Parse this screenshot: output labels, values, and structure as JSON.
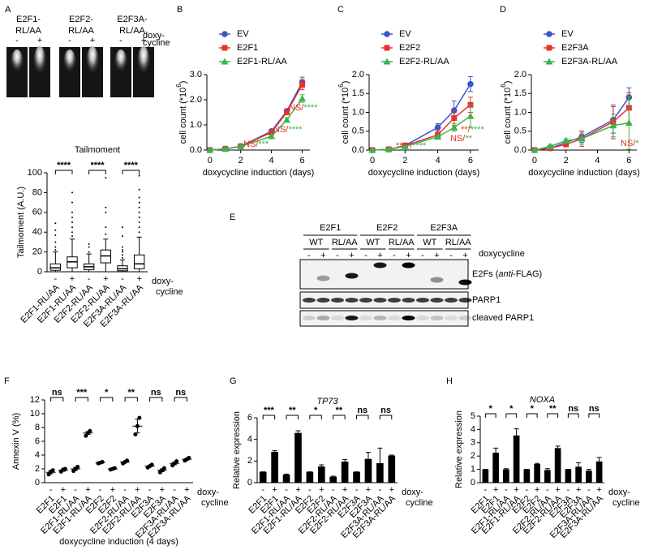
{
  "panel_labels": [
    "A",
    "B",
    "C",
    "D",
    "E",
    "F",
    "G",
    "H"
  ],
  "comet": {
    "groups": [
      [
        "E2F1-",
        "RL/AA"
      ],
      [
        "E2F2-",
        "RL/AA"
      ],
      [
        "E2F3A-",
        "RL/AA"
      ]
    ],
    "signs": [
      "-",
      "+",
      "-",
      "+",
      "-",
      "+"
    ],
    "row_label": [
      "doxy-",
      "cycline"
    ]
  },
  "blot": {
    "groups": [
      "E2F1",
      "E2F2",
      "E2F3A"
    ],
    "subgroups": [
      "WT",
      "RL/AA",
      "WT",
      "RL/AA",
      "WT",
      "RL/AA"
    ],
    "signs": [
      "-",
      "+",
      "-",
      "+",
      "-",
      "+",
      "-",
      "+",
      "-",
      "+",
      "-",
      "+"
    ],
    "row_label": "doxycycline",
    "rows": [
      [
        "E2Fs (",
        "anti",
        "-FLAG)"
      ],
      [
        "PARP1"
      ],
      [
        "cleaved PARP1"
      ]
    ]
  },
  "chart_data": [
    {
      "type": "box",
      "title": "Tailmoment",
      "y_label": "Tailmoment (A.U.)",
      "categories": [
        "E2F1-RL/AA",
        "E2F1-RL/AA",
        "E2F2-RL/AA",
        "E2F2-RL/AA",
        "E2F3A-RL/AA",
        "E2F3A-RL/AA"
      ],
      "signs": [
        "-",
        "+",
        "-",
        "+",
        "-",
        "+"
      ],
      "row_label": [
        "doxy-",
        "cycline"
      ],
      "whislo": [
        0,
        0,
        0,
        0,
        0,
        0
      ],
      "q1": [
        1.5,
        4,
        2,
        9,
        1,
        3
      ],
      "median": [
        4,
        10,
        5,
        16,
        3,
        8
      ],
      "q3": [
        8,
        15,
        8,
        22,
        6,
        17
      ],
      "whishi": [
        20,
        33,
        18,
        33,
        12,
        35
      ],
      "outliers": [
        [
          22,
          25,
          30,
          37,
          42,
          49
        ],
        [
          36,
          40,
          45,
          50,
          55,
          60,
          70,
          80
        ],
        [
          20,
          25,
          28
        ],
        [
          38,
          45,
          60,
          65,
          95
        ],
        [
          14,
          17,
          20,
          22,
          25,
          36,
          45
        ],
        [
          40,
          45,
          50,
          55,
          60,
          65,
          70,
          75,
          83,
          97
        ]
      ],
      "significance": [
        "****",
        "****",
        "****"
      ],
      "ylim": [
        0,
        100
      ],
      "yticks": [
        0,
        20,
        40,
        60,
        80,
        100
      ],
      "color": "#000000"
    },
    {
      "type": "line",
      "y_label": [
        "cell count (*10",
        "6",
        ")"
      ],
      "x_label": "doxycycline induction (days)",
      "x": [
        0,
        1,
        2,
        4,
        5,
        6
      ],
      "xlim": [
        -0.2,
        6.5
      ],
      "xticks": [
        0,
        2,
        4,
        6
      ],
      "ylim": [
        0,
        3
      ],
      "yticks": [
        {
          "value": 0,
          "label": "0.0"
        },
        {
          "value": 1,
          "label": "1.0"
        },
        {
          "value": 2,
          "label": "2.0"
        },
        {
          "value": 3,
          "label": "3.0"
        }
      ],
      "series": [
        {
          "name": "EV",
          "color": "#3b55c4",
          "marker": "circle",
          "values": [
            0,
            0.05,
            0.15,
            0.75,
            1.55,
            2.7
          ],
          "errors": [
            0,
            0.02,
            0.03,
            0.05,
            0.08,
            0.2
          ]
        },
        {
          "name": "E2F1",
          "color": "#e8322d",
          "marker": "square",
          "values": [
            0,
            0.05,
            0.15,
            0.7,
            1.5,
            2.6
          ],
          "errors": [
            0,
            0.02,
            0.03,
            0.05,
            0.08,
            0.2
          ]
        },
        {
          "name": "E2F1-RL/AA",
          "color": "#3cb44b",
          "marker": "triangle",
          "values": [
            0,
            0.05,
            0.15,
            0.55,
            1.2,
            2.05
          ],
          "errors": [
            0,
            0.02,
            0.03,
            0.05,
            0.08,
            0.15
          ]
        }
      ],
      "annotations": [
        {
          "parts": [
            "NS/",
            "****"
          ],
          "colors": [
            "#e8322d",
            "#3cb44b"
          ]
        },
        {
          "parts": [
            "NS/",
            "****"
          ],
          "colors": [
            "#e8322d",
            "#3cb44b"
          ]
        },
        {
          "parts": [
            "NS/",
            "***"
          ],
          "colors": [
            "#e8322d",
            "#3cb44b"
          ]
        }
      ]
    },
    {
      "type": "line",
      "y_label": [
        "cell count (*10",
        "6",
        ")"
      ],
      "x_label": "doxycycline induction (days)",
      "x": [
        0,
        1,
        2,
        4,
        5,
        6
      ],
      "xlim": [
        -0.2,
        6.5
      ],
      "xticks": [
        0,
        2,
        4,
        6
      ],
      "ylim": [
        0,
        2
      ],
      "yticks": [
        {
          "value": 0,
          "label": "0.0"
        },
        {
          "value": 0.5,
          "label": "0.5"
        },
        {
          "value": 1,
          "label": "1.0"
        },
        {
          "value": 1.5,
          "label": "1.5"
        },
        {
          "value": 2,
          "label": "2.0"
        }
      ],
      "series": [
        {
          "name": "EV",
          "color": "#3b55c4",
          "marker": "circle",
          "values": [
            0,
            0.02,
            0.12,
            0.6,
            1.05,
            1.75
          ],
          "errors": [
            0,
            0.01,
            0.02,
            0.1,
            0.25,
            0.2
          ]
        },
        {
          "name": "E2F2",
          "color": "#e8322d",
          "marker": "square",
          "values": [
            0,
            0.02,
            0.12,
            0.4,
            0.85,
            1.2
          ],
          "errors": [
            0,
            0.01,
            0.02,
            0.1,
            0.2,
            0.2
          ]
        },
        {
          "name": "E2F2-RL/AA",
          "color": "#3cb44b",
          "marker": "triangle",
          "values": [
            0,
            0.02,
            0.1,
            0.35,
            0.6,
            0.9
          ],
          "errors": [
            0,
            0.01,
            0.02,
            0.05,
            0.1,
            0.3
          ]
        }
      ],
      "annotations": [
        {
          "parts": [
            "****/",
            "****"
          ],
          "colors": [
            "#e8322d",
            "#3cb44b"
          ]
        },
        {
          "parts": [
            "NS/",
            "**"
          ],
          "colors": [
            "#e8322d",
            "#3cb44b"
          ]
        },
        {
          "parts": [
            "**/",
            "****"
          ],
          "colors": [
            "#e8322d",
            "#3cb44b"
          ]
        }
      ]
    },
    {
      "type": "line",
      "y_label": [
        "cell count (*10",
        "6",
        ")"
      ],
      "x_label": "doxycycline induction (days)",
      "x": [
        0,
        1,
        2,
        3,
        5,
        6
      ],
      "xlim": [
        -0.2,
        6.5
      ],
      "xticks": [
        0,
        2,
        4,
        6
      ],
      "ylim": [
        0,
        2
      ],
      "yticks": [
        {
          "value": 0,
          "label": "0.0"
        },
        {
          "value": 0.5,
          "label": "0.5"
        },
        {
          "value": 1,
          "label": "1.0"
        },
        {
          "value": 1.5,
          "label": "1.5"
        },
        {
          "value": 2,
          "label": "2.0"
        }
      ],
      "series": [
        {
          "name": "EV",
          "color": "#3b55c4",
          "marker": "circle",
          "values": [
            0,
            0.05,
            0.2,
            0.35,
            0.8,
            1.4
          ],
          "errors": [
            0,
            0.05,
            0.05,
            0.15,
            0.35,
            0.25
          ]
        },
        {
          "name": "E2F3A",
          "color": "#e8322d",
          "marker": "square",
          "values": [
            0,
            0.05,
            0.15,
            0.3,
            0.75,
            1.12
          ],
          "errors": [
            0,
            0.05,
            0.05,
            0.2,
            0.45,
            0.4
          ]
        },
        {
          "name": "E2F3A-RL/AA",
          "color": "#3cb44b",
          "marker": "triangle",
          "values": [
            0,
            0.1,
            0.25,
            0.3,
            0.65,
            0.72
          ],
          "errors": [
            0,
            0.05,
            0.05,
            0.15,
            0.3,
            0.7
          ]
        }
      ],
      "annotations": [
        {
          "parts": [
            "NS/",
            "*"
          ],
          "colors": [
            "#e8322d",
            "#3cb44b"
          ]
        }
      ]
    },
    {
      "type": "dot",
      "y_label": "Annexin V (%)",
      "x_label": "doxycycline induction (4 days)",
      "categories": [
        "E2F1",
        "E2F1",
        "E2F1-RL/AA",
        "E2F1-RL/AA",
        "E2F2",
        "E2F2",
        "E2F2-RL/AA",
        "E2F2-RL/AA",
        "E2F3A",
        "E2F3A",
        "E2F3A-RL/AA",
        "E2F3A-RL/AA"
      ],
      "signs": [
        "-",
        "+",
        "-",
        "+",
        "-",
        "+",
        "-",
        "+",
        "-",
        "+",
        "-",
        "+"
      ],
      "row_label": [
        "doxy-",
        "cycline"
      ],
      "values": [
        1.5,
        1.8,
        2.0,
        7.2,
        2.9,
        2.0,
        3.0,
        8.2,
        2.4,
        1.8,
        2.8,
        3.4
      ],
      "errors": [
        0.2,
        0.15,
        0.2,
        0.2,
        0.05,
        0.05,
        0.1,
        1.0,
        0.1,
        0.2,
        0.2,
        0.1
      ],
      "points": [
        [
          1.2,
          1.6,
          1.8
        ],
        [
          1.6,
          1.9,
          2.0
        ],
        [
          1.7,
          2.0,
          2.3
        ],
        [
          6.8,
          7.2,
          7.5
        ],
        [
          2.8,
          2.9,
          3.0
        ],
        [
          1.9,
          2.0,
          2.1
        ],
        [
          2.8,
          3.0,
          3.2
        ],
        [
          7.0,
          8.2,
          9.4
        ],
        [
          2.2,
          2.4,
          2.6
        ],
        [
          1.5,
          1.8,
          2.1
        ],
        [
          2.5,
          2.8,
          3.1
        ],
        [
          3.2,
          3.4,
          3.6
        ]
      ],
      "significance": [
        "ns",
        "***",
        "*",
        "**",
        "ns",
        "ns"
      ],
      "ylim": [
        0,
        12
      ],
      "yticks": [
        0,
        2,
        4,
        6,
        8,
        10,
        12
      ],
      "color": "#000000"
    },
    {
      "type": "bar",
      "title": "TP73",
      "title_italic": true,
      "y_label": "Relative expression",
      "categories": [
        "E2F1",
        "E2F1",
        "E2F1-RL/AA",
        "E2F1-RL/AA",
        "E2F2",
        "E2F2",
        "E2F2-RL/AA",
        "E2F2-RL/AA",
        "E2F3A",
        "E2F3A",
        "E2F3A-RL/AA",
        "E2F3A-RL/AA"
      ],
      "signs": [
        "-",
        "+",
        "-",
        "+",
        "-",
        "+",
        "-",
        "+",
        "-",
        "+",
        "-",
        "+"
      ],
      "row_label": [
        "doxy-",
        "cycline"
      ],
      "values": [
        1,
        2.85,
        0.75,
        4.6,
        1,
        1.5,
        0.55,
        1.95,
        1,
        2.2,
        1.8,
        2.5
      ],
      "errors": [
        0,
        0.1,
        0.05,
        0.2,
        0,
        0.15,
        0.05,
        0.2,
        0,
        0.6,
        1.4,
        0.05
      ],
      "significance": [
        "***",
        "**",
        "*",
        "**",
        "ns",
        "ns"
      ],
      "ylim": [
        0,
        6
      ],
      "yticks": [
        0,
        2,
        4,
        6
      ],
      "color": "#000000"
    },
    {
      "type": "bar",
      "title": "NOXA",
      "title_italic": true,
      "y_label": "Relative expression",
      "categories": [
        "E2F1",
        "E2F1",
        "E2F1-RL/AA",
        "E2F1-RL/AA",
        "E2F2",
        "E2F2",
        "E2F2-RL/AA",
        "E2F2-RL/AA",
        "E2F3A",
        "E2F3A",
        "E2F3A-RL/AA",
        "E2F3A-RL/AA"
      ],
      "signs": [
        "-",
        "+",
        "-",
        "+",
        "-",
        "+",
        "-",
        "+",
        "-",
        "+",
        "-",
        "+"
      ],
      "row_label": [
        "doxy-",
        "cycline"
      ],
      "values": [
        1,
        2.25,
        1,
        3.55,
        1,
        1.4,
        0.95,
        2.6,
        1,
        1.2,
        0.9,
        1.6
      ],
      "errors": [
        0,
        0.35,
        0.05,
        0.5,
        0,
        0.05,
        0.1,
        0.15,
        0,
        0.3,
        0.1,
        0.3
      ],
      "significance": [
        "*",
        "*",
        "*",
        "**",
        "ns",
        "ns"
      ],
      "ylim": [
        0,
        5
      ],
      "yticks": [
        0,
        1,
        2,
        3,
        4,
        5
      ],
      "color": "#000000"
    }
  ]
}
